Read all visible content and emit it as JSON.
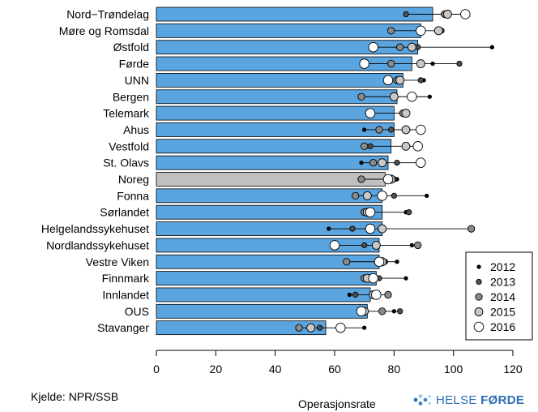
{
  "source_label": "Kjelde: NPR/SSB",
  "logo": {
    "word1": "HELSE",
    "word2": "FØRDE",
    "dot_color": "#3a87cf",
    "dot_color_light": "#9ecae9"
  },
  "chart_data": {
    "type": "bar",
    "orientation": "horizontal",
    "xlabel": "Operasjonsrate",
    "xlim": [
      0,
      120
    ],
    "xticks": [
      0,
      20,
      40,
      60,
      80,
      100,
      120
    ],
    "bar_color": "#5aa5e0",
    "highlight_color": "#c0c0c0",
    "highlight_category": "Noreg",
    "legend_position": "right-bottom",
    "categories": [
      "Nord−Trøndelag",
      "Møre og Romsdal",
      "Østfold",
      "Førde",
      "UNN",
      "Bergen",
      "Telemark",
      "Ahus",
      "Vestfold",
      "St. Olavs",
      "Noreg",
      "Fonna",
      "Sørlandet",
      "Helgelandssykehuset",
      "Nordlandssykehuset",
      "Vestre Viken",
      "Finnmark",
      "Innlandet",
      "OUS",
      "Stavanger"
    ],
    "values": [
      93,
      89,
      88,
      86,
      83,
      81,
      80,
      80,
      79,
      78,
      77,
      76,
      76,
      76,
      75,
      75,
      74,
      72,
      71,
      57
    ],
    "series": [
      {
        "name": "2012",
        "fill": "#000000",
        "size": 2.2,
        "values": [
          84,
          96,
          113,
          93,
          90,
          92,
          83,
          70,
          71,
          69,
          81,
          91,
          84,
          58,
          86,
          81,
          84,
          65,
          80,
          70
        ]
      },
      {
        "name": "2013",
        "fill": "#505050",
        "size": 3.2,
        "values": [
          84,
          96,
          88,
          102,
          89,
          80,
          84,
          79,
          72,
          81,
          80,
          80,
          85,
          66,
          70,
          77,
          75,
          67,
          82,
          55
        ]
      },
      {
        "name": "2014",
        "fill": "#8a8a8a",
        "size": 4.2,
        "values": [
          97,
          79,
          82,
          79,
          81,
          69,
          83,
          75,
          70,
          73,
          69,
          67,
          70,
          106,
          88,
          64,
          70,
          78,
          76,
          48
        ]
      },
      {
        "name": "2015",
        "fill": "#c8c8c8",
        "size": 5.0,
        "values": [
          98,
          95,
          86,
          89,
          82,
          80,
          84,
          84,
          84,
          76,
          79,
          71,
          71,
          76,
          74,
          76,
          71,
          73,
          70,
          52
        ]
      },
      {
        "name": "2016",
        "fill": "#ffffff",
        "size": 5.8,
        "values": [
          104,
          89,
          73,
          70,
          78,
          86,
          72,
          89,
          88,
          89,
          78,
          76,
          72,
          72,
          60,
          75,
          73,
          74,
          69,
          62
        ]
      }
    ]
  }
}
